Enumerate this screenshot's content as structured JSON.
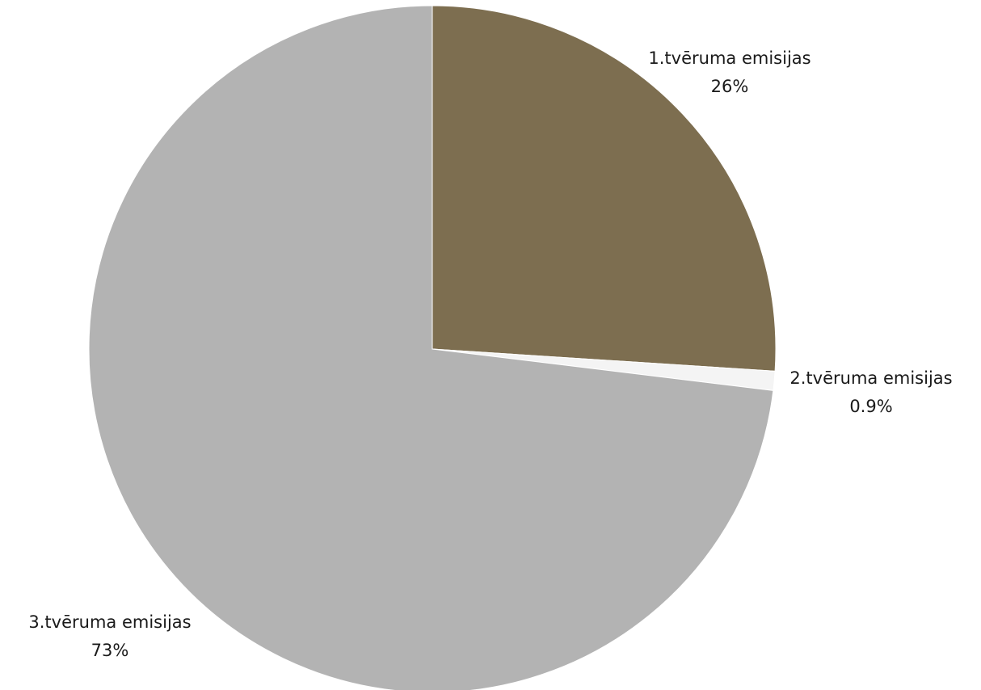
{
  "chart_data": {
    "type": "pie",
    "title": "",
    "slices": [
      {
        "name": "1.tvēruma emisijas",
        "value": 26,
        "label": "26%",
        "color": "#7d6e50"
      },
      {
        "name": "2.tvēruma emisijas",
        "value": 0.9,
        "label": "0.9%",
        "color": "#f4f4f4"
      },
      {
        "name": "3.tvēruma emisijas",
        "value": 73,
        "label": "73%",
        "color": "#b3b3b3"
      }
    ],
    "start_angle_deg": 0,
    "direction": "clockwise",
    "legend": "none"
  }
}
